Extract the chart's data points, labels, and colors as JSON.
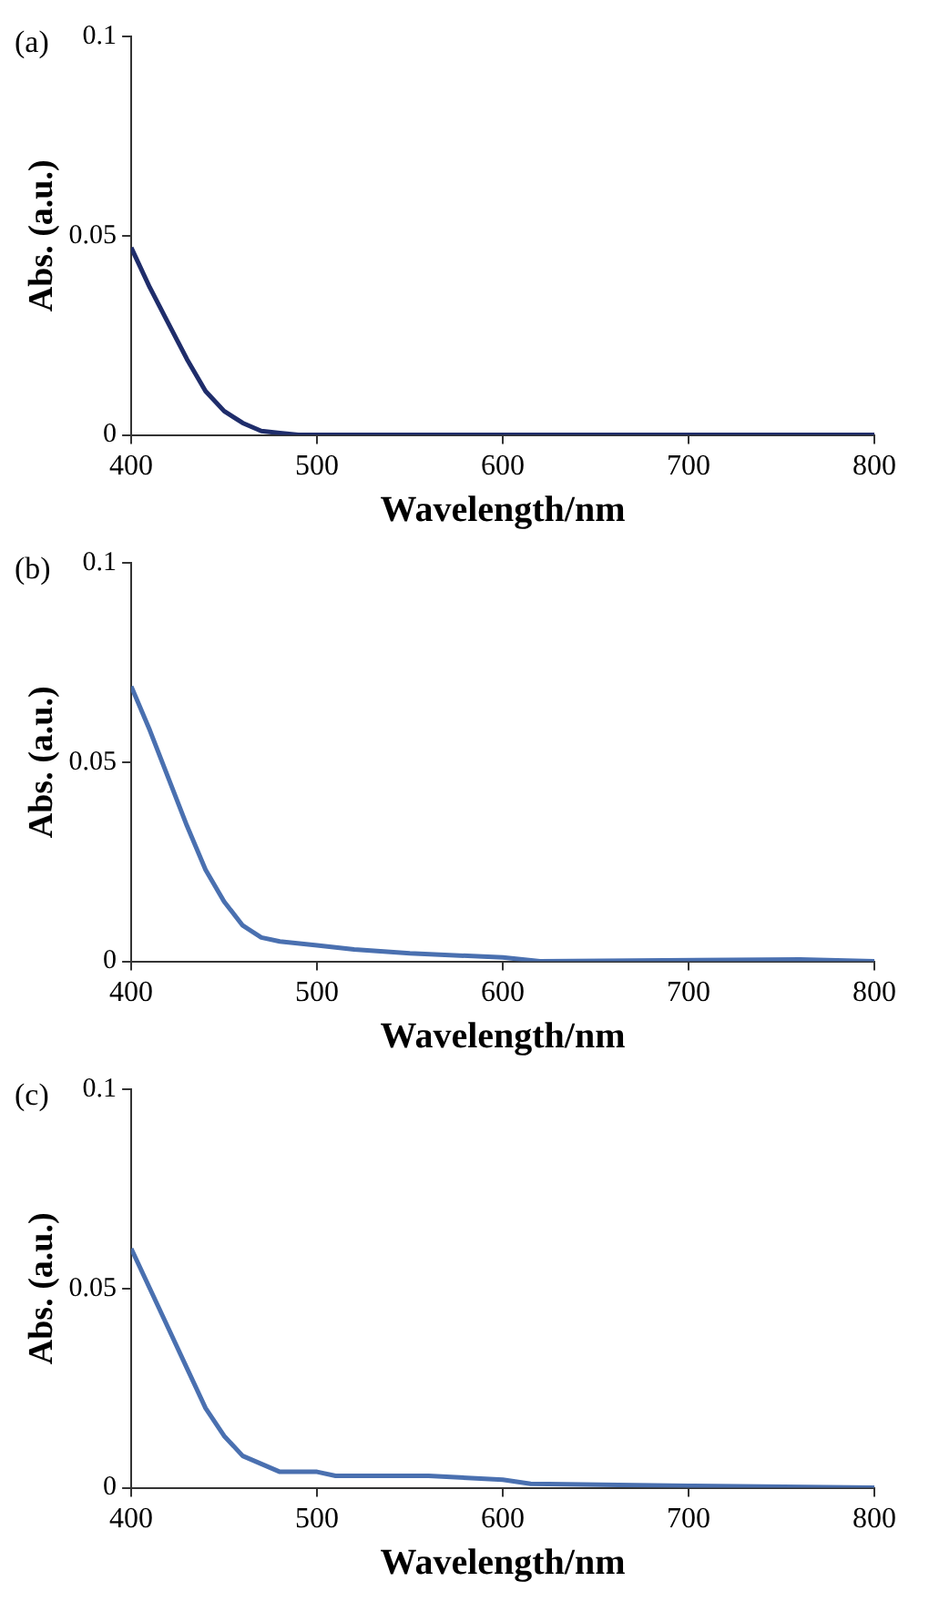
{
  "chart_data": [
    {
      "type": "line",
      "title": "(a)",
      "xlabel": "Wavelength/nm",
      "ylabel": "Abs. (a.u.)",
      "xlim": [
        400,
        800
      ],
      "xticks": [
        400,
        500,
        600,
        700,
        800
      ],
      "ylim": [
        0,
        0.1
      ],
      "yticks": [
        0,
        0.05,
        0.1
      ],
      "grid": false,
      "legend": false,
      "marker": "none",
      "line_style": "solid",
      "series": [
        {
          "color": "#1f2d6b",
          "x": [
            400,
            410,
            420,
            430,
            440,
            450,
            460,
            470,
            480,
            490,
            500,
            600,
            700,
            800
          ],
          "values": [
            0.047,
            0.037,
            0.028,
            0.019,
            0.011,
            0.006,
            0.003,
            0.001,
            0.0005,
            0,
            0,
            0,
            0,
            0
          ]
        }
      ]
    },
    {
      "type": "line",
      "title": "(b)",
      "xlabel": "Wavelength/nm",
      "ylabel": "Abs. (a.u.)",
      "xlim": [
        400,
        800
      ],
      "xticks": [
        400,
        500,
        600,
        700,
        800
      ],
      "ylim": [
        0,
        0.1
      ],
      "yticks": [
        0,
        0.05,
        0.1
      ],
      "grid": false,
      "legend": false,
      "marker": "none",
      "line_style": "solid",
      "series": [
        {
          "color": "#4a70b0",
          "x": [
            400,
            410,
            420,
            430,
            440,
            450,
            460,
            470,
            480,
            500,
            520,
            550,
            600,
            620,
            760,
            800
          ],
          "values": [
            0.069,
            0.058,
            0.046,
            0.034,
            0.023,
            0.015,
            0.009,
            0.006,
            0.005,
            0.004,
            0.003,
            0.002,
            0.001,
            0,
            0.0005,
            0
          ]
        }
      ]
    },
    {
      "type": "line",
      "title": "(c)",
      "xlabel": "Wavelength/nm",
      "ylabel": "Abs. (a.u.)",
      "xlim": [
        400,
        800
      ],
      "xticks": [
        400,
        500,
        600,
        700,
        800
      ],
      "ylim": [
        0,
        0.1
      ],
      "yticks": [
        0,
        0.05,
        0.1
      ],
      "grid": false,
      "legend": false,
      "marker": "none",
      "line_style": "solid",
      "series": [
        {
          "color": "#4a70b0",
          "x": [
            400,
            410,
            420,
            430,
            440,
            450,
            460,
            470,
            480,
            500,
            510,
            560,
            600,
            615,
            700,
            800
          ],
          "values": [
            0.06,
            0.05,
            0.04,
            0.03,
            0.02,
            0.013,
            0.008,
            0.006,
            0.004,
            0.004,
            0.003,
            0.003,
            0.002,
            0.001,
            0.0005,
            0
          ]
        }
      ]
    }
  ]
}
